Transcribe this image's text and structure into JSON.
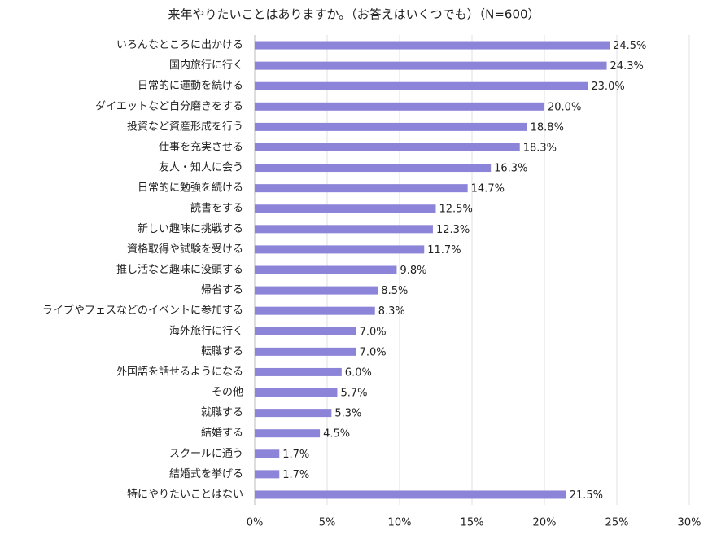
{
  "chart_data": {
    "type": "bar",
    "orientation": "horizontal",
    "title": "来年やりたいことはありますか。（お答えはいくつでも）（N=600）",
    "categories": [
      "いろんなところに出かける",
      "国内旅行に行く",
      "日常的に運動を続ける",
      "ダイエットなど自分磨きをする",
      "投資など資産形成を行う",
      "仕事を充実させる",
      "友人・知人に会う",
      "日常的に勉強を続ける",
      "読書をする",
      "新しい趣味に挑戦する",
      "資格取得や試験を受ける",
      "推し活など趣味に没頭する",
      "帰省する",
      "ライブやフェスなどのイベントに参加する",
      "海外旅行に行く",
      "転職する",
      "外国語を話せるようになる",
      "その他",
      "就職する",
      "結婚する",
      "スクールに通う",
      "結婚式を挙げる",
      "特にやりたいことはない"
    ],
    "values": [
      24.5,
      24.3,
      23.0,
      20.0,
      18.8,
      18.3,
      16.3,
      14.7,
      12.5,
      12.3,
      11.7,
      9.8,
      8.5,
      8.3,
      7.0,
      7.0,
      6.0,
      5.7,
      5.3,
      4.5,
      1.7,
      1.7,
      21.5
    ],
    "value_labels": [
      "24.5%",
      "24.3%",
      "23.0%",
      "20.0%",
      "18.8%",
      "18.3%",
      "16.3%",
      "14.7%",
      "12.5%",
      "12.3%",
      "11.7%",
      "9.8%",
      "8.5%",
      "8.3%",
      "7.0%",
      "7.0%",
      "6.0%",
      "5.7%",
      "5.3%",
      "4.5%",
      "1.7%",
      "1.7%",
      "21.5%"
    ],
    "color": "#8b84d8",
    "xlim": [
      0,
      30
    ],
    "xticks": [
      {
        "value": 0,
        "label": "0%"
      },
      {
        "value": 5,
        "label": "5%"
      },
      {
        "value": 10,
        "label": "10%"
      },
      {
        "value": 15,
        "label": "15%"
      },
      {
        "value": 20,
        "label": "20%"
      },
      {
        "value": 25,
        "label": "25%"
      },
      {
        "value": 30,
        "label": "30%"
      }
    ],
    "grid": true
  }
}
